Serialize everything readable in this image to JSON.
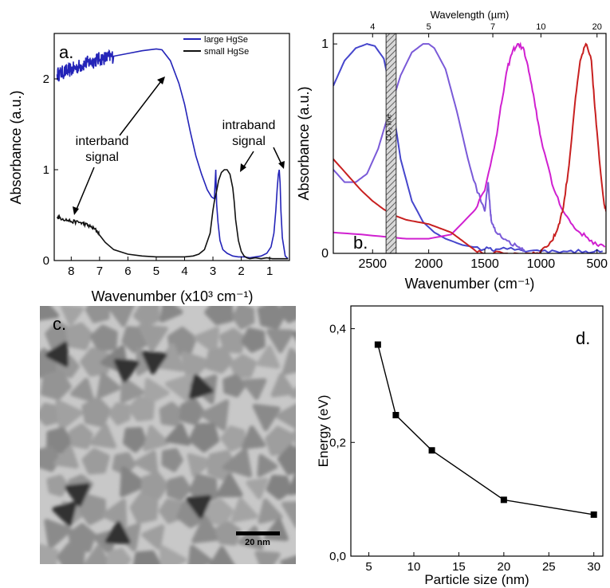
{
  "figure": {
    "panel_labels": {
      "a": "a.",
      "b": "b.",
      "c": "c.",
      "d": "d."
    }
  },
  "chart_data": [
    {
      "panel": "a",
      "type": "line",
      "xlabel": "Wavenumber (x10³ cm⁻¹)",
      "ylabel": "Absorbance (a.u.)",
      "xlim": [
        8.6,
        0.3
      ],
      "ylim": [
        0,
        2.5
      ],
      "xticks": [
        8,
        7,
        6,
        5,
        4,
        3,
        2,
        1
      ],
      "yticks": [
        0,
        1,
        2
      ],
      "legend_position": "top-right",
      "legend": [
        "large HgSe",
        "small HgSe"
      ],
      "annotations": {
        "interband": [
          "interband",
          "signal"
        ],
        "intraband": [
          "intraband",
          "signal"
        ]
      },
      "series": [
        {
          "name": "large HgSe",
          "color": "#2424b8",
          "noisy_until_x": 7.0,
          "x": [
            8.5,
            8.0,
            7.5,
            7.0,
            6.5,
            6.0,
            5.5,
            5.0,
            4.8,
            4.5,
            4.2,
            4.0,
            3.8,
            3.6,
            3.4,
            3.2,
            3.05,
            2.95,
            2.9,
            2.87,
            2.82,
            2.75,
            2.65,
            2.5,
            2.3,
            2.1,
            1.9,
            1.7,
            1.5,
            1.3,
            1.1,
            0.95,
            0.85,
            0.78,
            0.73,
            0.69,
            0.66,
            0.63,
            0.6,
            0.55,
            0.45,
            0.35
          ],
          "y": [
            2.05,
            2.1,
            2.17,
            2.22,
            2.25,
            2.28,
            2.31,
            2.33,
            2.32,
            2.2,
            1.95,
            1.72,
            1.42,
            1.15,
            0.95,
            0.78,
            0.7,
            0.68,
            1.0,
            0.62,
            0.42,
            0.22,
            0.12,
            0.08,
            0.05,
            0.04,
            0.04,
            0.03,
            0.04,
            0.05,
            0.08,
            0.15,
            0.3,
            0.55,
            0.8,
            0.95,
            1.0,
            0.85,
            0.55,
            0.25,
            0.05,
            0.02
          ]
        },
        {
          "name": "small HgSe",
          "color": "#111111",
          "x": [
            8.5,
            8.3,
            8.0,
            7.7,
            7.5,
            7.3,
            7.1,
            7.0,
            6.8,
            6.5,
            6.0,
            5.5,
            5.0,
            4.5,
            4.0,
            3.7,
            3.5,
            3.3,
            3.1,
            3.0,
            2.95,
            2.9,
            2.85,
            2.8,
            2.7,
            2.6,
            2.5,
            2.4,
            2.3,
            2.25,
            2.2,
            2.1,
            2.0,
            1.9,
            1.8,
            1.7,
            1.5,
            1.3,
            1.1,
            0.9,
            0.7,
            0.5,
            0.35
          ],
          "y": [
            0.48,
            0.46,
            0.43,
            0.42,
            0.4,
            0.37,
            0.33,
            0.28,
            0.2,
            0.12,
            0.07,
            0.05,
            0.04,
            0.04,
            0.04,
            0.05,
            0.07,
            0.12,
            0.3,
            0.55,
            0.65,
            0.72,
            0.8,
            0.88,
            0.97,
            1.0,
            1.0,
            0.95,
            0.8,
            0.65,
            0.45,
            0.22,
            0.1,
            0.05,
            0.03,
            0.02,
            0.03,
            0.02,
            0.03,
            0.02,
            0.02,
            0.02,
            0.02
          ]
        }
      ]
    },
    {
      "panel": "b",
      "type": "line",
      "xlabel": "Wavenumber (cm⁻¹)",
      "ylabel": "Absorbance (a.u.)",
      "top_axis_label": "Wavelength (µm)",
      "xlim": [
        2850,
        420
      ],
      "ylim": [
        0,
        1.05
      ],
      "xticks": [
        2500,
        2000,
        1500,
        1000,
        500
      ],
      "yticks": [
        0,
        1
      ],
      "top_ticks_um": [
        4,
        5,
        7,
        10,
        20
      ],
      "shaded_band": {
        "label": "CO₂ line",
        "x_from": 2380,
        "x_to": 2290
      },
      "series": [
        {
          "color": "#4646cc",
          "x": [
            2850,
            2750,
            2650,
            2550,
            2480,
            2400,
            2350,
            2250,
            2150,
            2050,
            1950,
            1850,
            1700,
            1500,
            1400,
            1200,
            1000,
            800,
            600,
            450
          ],
          "y": [
            0.8,
            0.92,
            0.98,
            1.0,
            0.99,
            0.93,
            0.8,
            0.45,
            0.25,
            0.15,
            0.1,
            0.07,
            0.04,
            0.02,
            0.02,
            0.02,
            0.01,
            0.01,
            0.01,
            0.01
          ]
        },
        {
          "color": "#7a5ad8",
          "x": [
            2850,
            2750,
            2650,
            2550,
            2450,
            2350,
            2250,
            2150,
            2050,
            2000,
            1950,
            1850,
            1750,
            1650,
            1600,
            1500,
            1470,
            1450,
            1440,
            1400,
            1300,
            1200,
            1150
          ],
          "y": [
            0.4,
            0.34,
            0.34,
            0.38,
            0.5,
            0.68,
            0.85,
            0.96,
            1.0,
            1.0,
            0.98,
            0.88,
            0.68,
            0.45,
            0.35,
            0.2,
            0.34,
            0.2,
            0.15,
            0.1,
            0.06,
            0.03,
            0.02
          ]
        },
        {
          "color": "#d020d0",
          "x": [
            2850,
            2600,
            2400,
            2200,
            2000,
            1800,
            1600,
            1500,
            1400,
            1350,
            1300,
            1250,
            1200,
            1150,
            1100,
            1050,
            1000,
            900,
            800,
            700,
            600,
            500,
            430
          ],
          "y": [
            0.1,
            0.09,
            0.08,
            0.07,
            0.07,
            0.09,
            0.2,
            0.3,
            0.55,
            0.72,
            0.88,
            0.97,
            1.0,
            0.97,
            0.85,
            0.7,
            0.55,
            0.33,
            0.2,
            0.12,
            0.08,
            0.04,
            0.03
          ]
        },
        {
          "color": "#c82020",
          "x": [
            2850,
            2700,
            2600,
            2500,
            2400,
            2300,
            2200,
            2100,
            2000,
            1900,
            1800,
            1700,
            1600,
            1500,
            1300,
            1100,
            1000,
            900,
            850,
            800,
            750,
            700,
            650,
            600,
            550,
            520,
            480,
            440,
            420
          ],
          "y": [
            0.45,
            0.36,
            0.3,
            0.25,
            0.21,
            0.18,
            0.16,
            0.15,
            0.14,
            0.12,
            0.1,
            0.06,
            0.02,
            0.0,
            0.0,
            0.0,
            0.01,
            0.06,
            0.12,
            0.22,
            0.42,
            0.7,
            0.92,
            1.0,
            0.92,
            0.7,
            0.45,
            0.25,
            0.2
          ]
        }
      ]
    },
    {
      "panel": "d",
      "type": "line",
      "xlabel": "Particle size (nm)",
      "ylabel": "Energy (eV)",
      "xlim": [
        3,
        31
      ],
      "ylim": [
        0,
        0.44
      ],
      "xticks": [
        5,
        10,
        15,
        20,
        25,
        30
      ],
      "yticks": [
        0,
        0.2,
        0.4
      ],
      "ytick_labels": [
        "0,0",
        "0,2",
        "0,4"
      ],
      "series": [
        {
          "color": "#000000",
          "x": [
            6,
            8,
            12,
            20,
            30
          ],
          "y": [
            0.372,
            0.248,
            0.186,
            0.099,
            0.073
          ]
        }
      ]
    }
  ],
  "image_panel": {
    "panel": "c",
    "scale_bar_label": "20 nm"
  }
}
